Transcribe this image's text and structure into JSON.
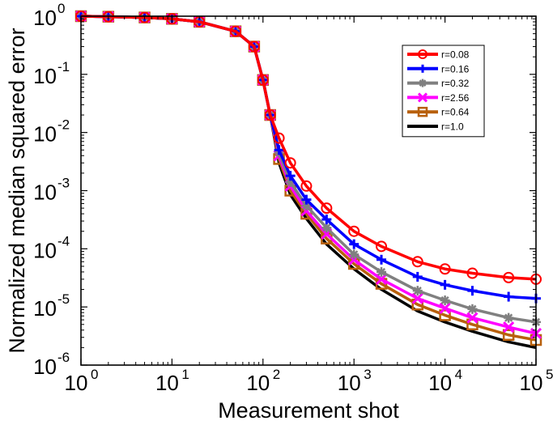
{
  "chart_data": {
    "type": "line",
    "xlabel": "Measurement shot",
    "ylabel": "Normalized median squared error",
    "xscale": "log",
    "yscale": "log",
    "xlim": [
      1,
      100000
    ],
    "ylim": [
      1e-06,
      1
    ],
    "grid": false,
    "legend_position": "top-right",
    "x_ticks": [
      {
        "value": 1,
        "base": "10",
        "exp": "0"
      },
      {
        "value": 10,
        "base": "10",
        "exp": "1"
      },
      {
        "value": 100,
        "base": "10",
        "exp": "2"
      },
      {
        "value": 1000,
        "base": "10",
        "exp": "3"
      },
      {
        "value": 10000,
        "base": "10",
        "exp": "4"
      },
      {
        "value": 100000,
        "base": "10",
        "exp": "5"
      }
    ],
    "y_ticks": [
      {
        "value": 1,
        "base": "10",
        "exp": "0"
      },
      {
        "value": 0.1,
        "base": "10",
        "exp": "-1"
      },
      {
        "value": 0.01,
        "base": "10",
        "exp": "-2"
      },
      {
        "value": 0.001,
        "base": "10",
        "exp": "-3"
      },
      {
        "value": 0.0001,
        "base": "10",
        "exp": "-4"
      },
      {
        "value": 1e-05,
        "base": "10",
        "exp": "-5"
      },
      {
        "value": 1e-06,
        "base": "10",
        "exp": "-6"
      }
    ],
    "series": [
      {
        "name": "r=0.08",
        "color": "#ff0000",
        "marker": "circle",
        "x": [
          1,
          2,
          5,
          10,
          20,
          50,
          80,
          100,
          120,
          150,
          200,
          300,
          500,
          1000,
          2000,
          5000,
          10000,
          20000,
          50000,
          100000
        ],
        "y": [
          1,
          0.98,
          0.95,
          0.9,
          0.8,
          0.55,
          0.3,
          0.08,
          0.02,
          0.008,
          0.003,
          0.0012,
          0.0005,
          0.0002,
          0.00011,
          6e-05,
          4.5e-05,
          3.8e-05,
          3.2e-05,
          3e-05
        ]
      },
      {
        "name": "r=0.16",
        "color": "#0000ff",
        "marker": "plus",
        "x": [
          1,
          2,
          5,
          10,
          20,
          50,
          80,
          100,
          120,
          150,
          200,
          300,
          500,
          1000,
          2000,
          5000,
          10000,
          20000,
          50000,
          100000
        ],
        "y": [
          1,
          0.98,
          0.95,
          0.9,
          0.8,
          0.55,
          0.3,
          0.08,
          0.02,
          0.005,
          0.0018,
          0.0007,
          0.00032,
          0.00012,
          6.5e-05,
          3.3e-05,
          2.4e-05,
          1.9e-05,
          1.5e-05,
          1.4e-05
        ]
      },
      {
        "name": "r=0.32",
        "color": "#808080",
        "marker": "asterisk",
        "x": [
          1,
          2,
          5,
          10,
          20,
          50,
          80,
          100,
          120,
          150,
          200,
          300,
          500,
          1000,
          2000,
          5000,
          10000,
          20000,
          50000,
          100000
        ],
        "y": [
          1,
          0.98,
          0.95,
          0.9,
          0.8,
          0.55,
          0.3,
          0.08,
          0.02,
          0.0045,
          0.0014,
          0.00055,
          0.00023,
          8e-05,
          4e-05,
          1.9e-05,
          1.3e-05,
          9.2e-06,
          6.5e-06,
          5.5e-06
        ]
      },
      {
        "name": "r=2.56",
        "color": "#ff00ff",
        "marker": "x",
        "x": [
          1,
          2,
          5,
          10,
          20,
          50,
          80,
          100,
          120,
          150,
          200,
          300,
          500,
          1000,
          2000,
          5000,
          10000,
          20000,
          50000,
          100000
        ],
        "y": [
          1,
          0.98,
          0.95,
          0.9,
          0.8,
          0.55,
          0.3,
          0.08,
          0.02,
          0.004,
          0.0012,
          0.00045,
          0.00018,
          6.5e-05,
          3e-05,
          1.4e-05,
          9.5e-06,
          6.5e-06,
          4.5e-06,
          3.5e-06
        ]
      },
      {
        "name": "r=0.64",
        "color": "#b8600b",
        "marker": "square",
        "x": [
          1,
          2,
          5,
          10,
          20,
          50,
          80,
          100,
          120,
          150,
          200,
          300,
          500,
          1000,
          2000,
          5000,
          10000,
          20000,
          50000,
          100000
        ],
        "y": [
          1,
          0.98,
          0.95,
          0.9,
          0.8,
          0.55,
          0.3,
          0.08,
          0.02,
          0.0035,
          0.001,
          0.0004,
          0.00015,
          5.5e-05,
          2.5e-05,
          1.1e-05,
          7.2e-06,
          5e-06,
          3.3e-06,
          2.7e-06
        ]
      },
      {
        "name": "r=1.0",
        "color": "#000000",
        "marker": "none",
        "x": [
          1,
          2,
          5,
          10,
          20,
          50,
          80,
          100,
          120,
          150,
          200,
          300,
          500,
          1000,
          2000,
          5000,
          10000,
          20000,
          50000,
          100000
        ],
        "y": [
          1,
          0.98,
          0.95,
          0.9,
          0.8,
          0.55,
          0.3,
          0.08,
          0.02,
          0.003,
          0.00085,
          0.00033,
          0.00012,
          4.5e-05,
          2e-05,
          8.5e-06,
          5.5e-06,
          3.8e-06,
          2.5e-06,
          2e-06
        ]
      }
    ]
  }
}
